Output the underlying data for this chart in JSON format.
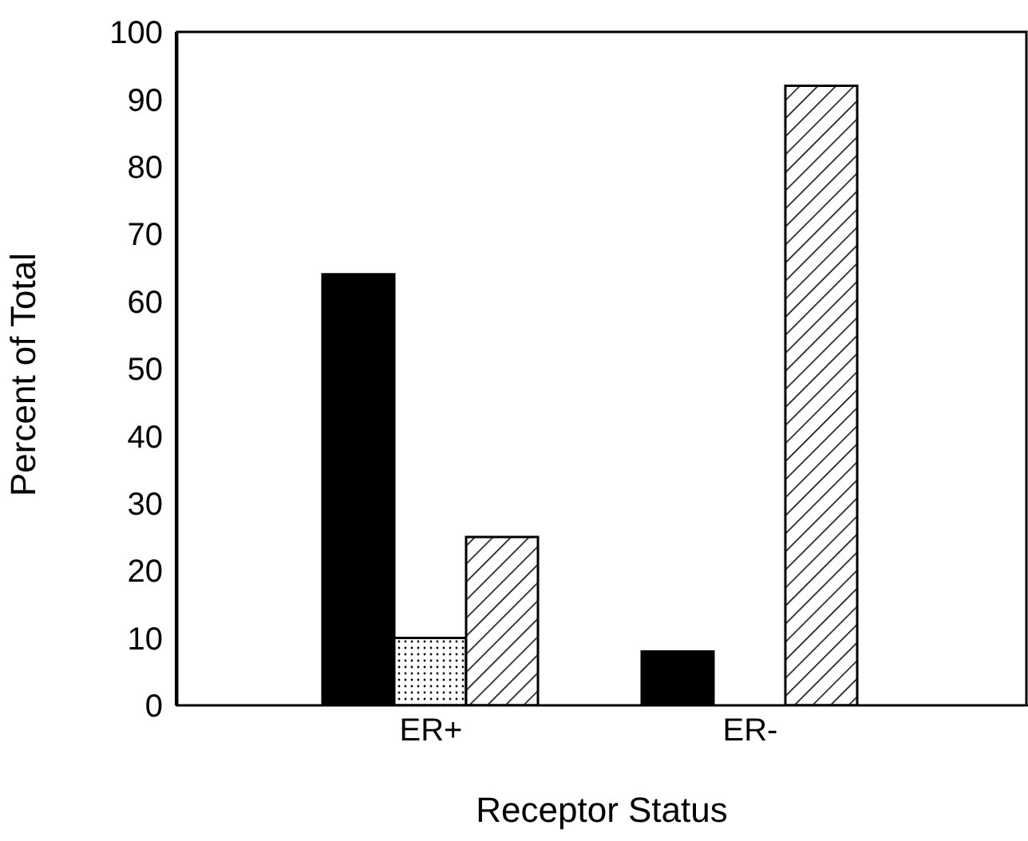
{
  "chart_data": {
    "type": "bar",
    "xlabel": "Receptor Status",
    "ylabel": "Percent of Total",
    "categories": [
      "ER+",
      "ER-"
    ],
    "series": [
      {
        "color": "#000000",
        "values": [
          64,
          8
        ]
      },
      {
        "color": "#000000",
        "values": [
          10,
          0
        ]
      },
      {
        "color": "#000000",
        "values": [
          25,
          92
        ]
      }
    ],
    "ylim": [
      0,
      100
    ],
    "yticks": [
      0,
      10,
      20,
      30,
      40,
      50,
      60,
      70,
      80,
      90,
      100
    ],
    "grid": false,
    "legend": false
  }
}
